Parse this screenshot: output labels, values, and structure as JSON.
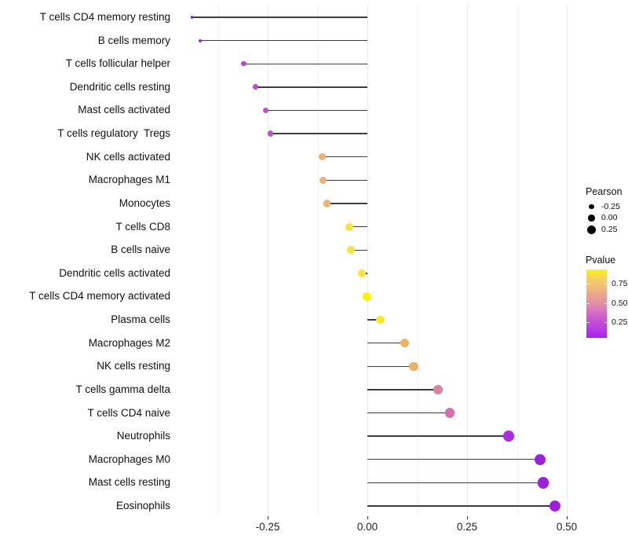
{
  "chart_data": {
    "type": "lollipop",
    "title": "",
    "xlabel": "",
    "ylabel": "",
    "grid": true,
    "x_axis": {
      "range": [
        -0.486,
        0.516
      ],
      "ticks": [
        -0.25,
        0.0,
        0.25,
        0.5
      ],
      "tick_labels": [
        "-0.25",
        "0.00",
        "0.25",
        "0.50"
      ],
      "minor_ticks": [
        -0.375,
        -0.125,
        0.125,
        0.375
      ]
    },
    "rows": [
      {
        "label": "T cells CD4 memory resting",
        "pearson": -0.44,
        "pvalue": 0.02,
        "color": "#8d23d6"
      },
      {
        "label": "B cells memory",
        "pearson": -0.42,
        "pvalue": 0.04,
        "color": "#9328d8"
      },
      {
        "label": "T cells follicular helper",
        "pearson": -0.31,
        "pvalue": 0.15,
        "color": "#b847cb"
      },
      {
        "label": "Dendritic cells resting",
        "pearson": -0.28,
        "pvalue": 0.17,
        "color": "#bb4bca"
      },
      {
        "label": "Mast cells activated",
        "pearson": -0.255,
        "pvalue": 0.2,
        "color": "#c052c8"
      },
      {
        "label": "T cells regulatory  Tregs",
        "pearson": -0.243,
        "pvalue": 0.21,
        "color": "#c155c7"
      },
      {
        "label": "NK cells activated",
        "pearson": -0.113,
        "pvalue": 0.62,
        "color": "#ecb278"
      },
      {
        "label": "Macrophages M1",
        "pearson": -0.112,
        "pvalue": 0.62,
        "color": "#ecb278"
      },
      {
        "label": "Monocytes",
        "pearson": -0.101,
        "pvalue": 0.63,
        "color": "#edb474"
      },
      {
        "label": "T cells CD8",
        "pearson": -0.045,
        "pvalue": 0.84,
        "color": "#f5e243"
      },
      {
        "label": "B cells naive",
        "pearson": -0.042,
        "pvalue": 0.84,
        "color": "#f5e243"
      },
      {
        "label": "Dendritic cells activated",
        "pearson": -0.014,
        "pvalue": 0.87,
        "color": "#f6e63a"
      },
      {
        "label": "T cells CD4 memory activated",
        "pearson": -0.001,
        "pvalue": 0.97,
        "color": "#fcf20d"
      },
      {
        "label": "Plasma cells",
        "pearson": 0.032,
        "pvalue": 0.9,
        "color": "#f8e92c"
      },
      {
        "label": "Macrophages M2",
        "pearson": 0.093,
        "pvalue": 0.6,
        "color": "#eeb163"
      },
      {
        "label": "NK cells resting",
        "pearson": 0.116,
        "pvalue": 0.61,
        "color": "#edb365"
      },
      {
        "label": "T cells gamma delta",
        "pearson": 0.177,
        "pvalue": 0.44,
        "color": "#d9819d"
      },
      {
        "label": "T cells CD4 naive",
        "pearson": 0.207,
        "pvalue": 0.35,
        "color": "#d470af"
      },
      {
        "label": "Neutrophils",
        "pearson": 0.354,
        "pvalue": 0.08,
        "color": "#a82ede"
      },
      {
        "label": "Macrophages M0",
        "pearson": 0.433,
        "pvalue": 0.04,
        "color": "#9c22da"
      },
      {
        "label": "Mast cells resting",
        "pearson": 0.441,
        "pvalue": 0.04,
        "color": "#9c22da"
      },
      {
        "label": "Eosinophils",
        "pearson": 0.47,
        "pvalue": 0.03,
        "color": "#9e20dc"
      }
    ],
    "legend": {
      "size": {
        "title": "Pearson",
        "entries": [
          {
            "label": "-0.25",
            "value": -0.25
          },
          {
            "label": "0.00",
            "value": 0.0
          },
          {
            "label": "0.25",
            "value": 0.25
          }
        ]
      },
      "color": {
        "title": "Pvalue",
        "range": [
          0.05,
          0.93
        ],
        "tick_values": [
          0.75,
          0.5,
          0.25
        ],
        "tick_labels": [
          "0.75",
          "0.50",
          "0.25"
        ],
        "gradient_stops_bottom_to_top": [
          {
            "pct": 0,
            "color": "#a81ff0"
          },
          {
            "pct": 12,
            "color": "#b93ae2"
          },
          {
            "pct": 25,
            "color": "#c94fd4"
          },
          {
            "pct": 37,
            "color": "#d66cc6"
          },
          {
            "pct": 50,
            "color": "#e28da9"
          },
          {
            "pct": 62,
            "color": "#eba48f"
          },
          {
            "pct": 75,
            "color": "#f1bd7b"
          },
          {
            "pct": 87,
            "color": "#f6d35e"
          },
          {
            "pct": 100,
            "color": "#fbf115"
          }
        ]
      }
    }
  },
  "colors": {
    "background": "#ffffff",
    "stem": "#3d3d3d",
    "grid_major": "#ebebeb",
    "grid_minor": "#f3f3f3",
    "axis_text": "#111111",
    "legend_dot": "#000000"
  }
}
